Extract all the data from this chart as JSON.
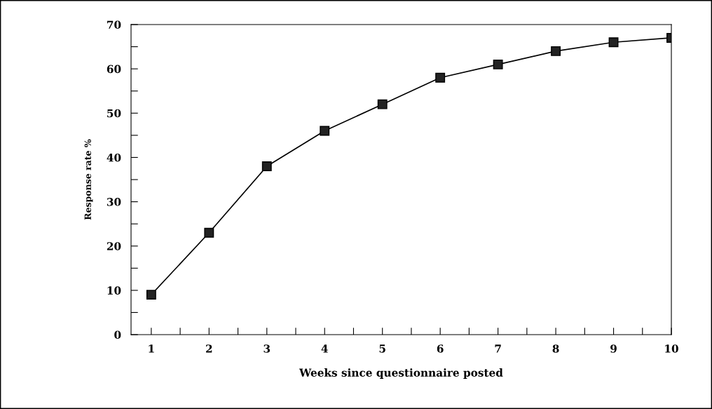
{
  "chart_data": {
    "type": "line",
    "xlabel": "Weeks since questionnaire posted",
    "ylabel": "Response rate %",
    "x": [
      1,
      2,
      3,
      4,
      5,
      6,
      7,
      8,
      9,
      10
    ],
    "series": [
      {
        "color": "#000000",
        "values": [
          9,
          23,
          38,
          46,
          52,
          58,
          61,
          64,
          66,
          67
        ]
      }
    ],
    "xlim": [
      0.65,
      10
    ],
    "xticks": [
      1,
      {
        "value": 1.5,
        "label": null
      },
      2,
      {
        "value": 2.5,
        "label": null
      },
      3,
      {
        "value": 3.5,
        "label": null
      },
      4,
      {
        "value": 4.5,
        "label": null
      },
      5,
      {
        "value": 5.5,
        "label": null
      },
      6,
      {
        "value": 6.5,
        "label": null
      },
      7,
      {
        "value": 7.5,
        "label": null
      },
      8,
      {
        "value": 8.5,
        "label": null
      },
      9,
      {
        "value": 9.5,
        "label": null
      },
      10
    ],
    "ylim": [
      0,
      70
    ],
    "yticks": [
      0,
      {
        "value": 5,
        "label": null
      },
      10,
      {
        "value": 15,
        "label": null
      },
      20,
      {
        "value": 25,
        "label": null
      },
      30,
      {
        "value": 35,
        "label": null
      },
      40,
      {
        "value": 45,
        "label": null
      },
      50,
      {
        "value": 55,
        "label": null
      },
      60,
      {
        "value": 65,
        "label": null
      },
      70
    ],
    "grid": false,
    "legend": false,
    "marker": "square",
    "line_style": "solid"
  }
}
